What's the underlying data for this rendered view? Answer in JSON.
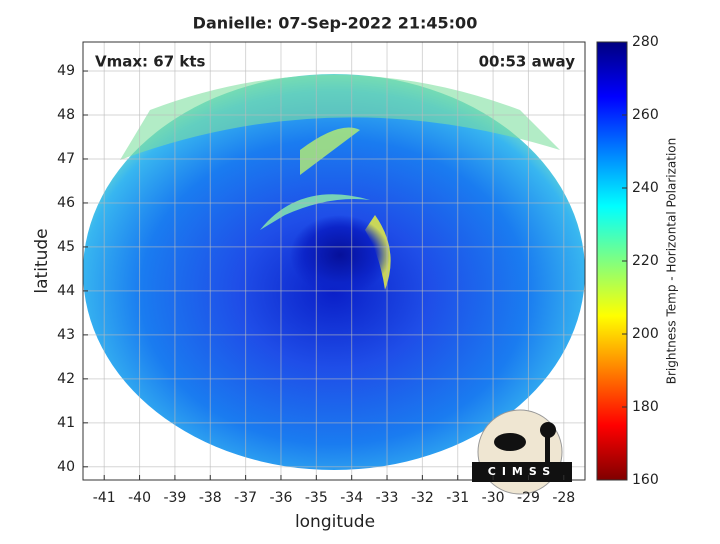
{
  "chart_data": {
    "type": "heatmap",
    "title": "Danielle: 07-Sep-2022 21:45:00",
    "annotations": [
      "Vmax: 67 kts",
      "00:53 away"
    ],
    "x_label": "longitude",
    "y_label": "latitude",
    "xlim": [
      -41.6,
      -27.4
    ],
    "xticks": [
      -41,
      -40,
      -39,
      -38,
      -37,
      -36,
      -35,
      -34,
      -33,
      -32,
      -31,
      -30,
      -29,
      -28
    ],
    "ylim": [
      39.7,
      49.66
    ],
    "yticks": [
      40,
      41,
      42,
      43,
      44,
      45,
      46,
      47,
      48,
      49
    ],
    "grid": true,
    "colormap": "jet",
    "colorbar": {
      "label": "Brightness Temp - Horizontal Polarization",
      "lim": [
        160,
        280
      ],
      "ticks": [
        160,
        180,
        200,
        220,
        240,
        260,
        280
      ]
    },
    "logo": "CIMSS"
  }
}
